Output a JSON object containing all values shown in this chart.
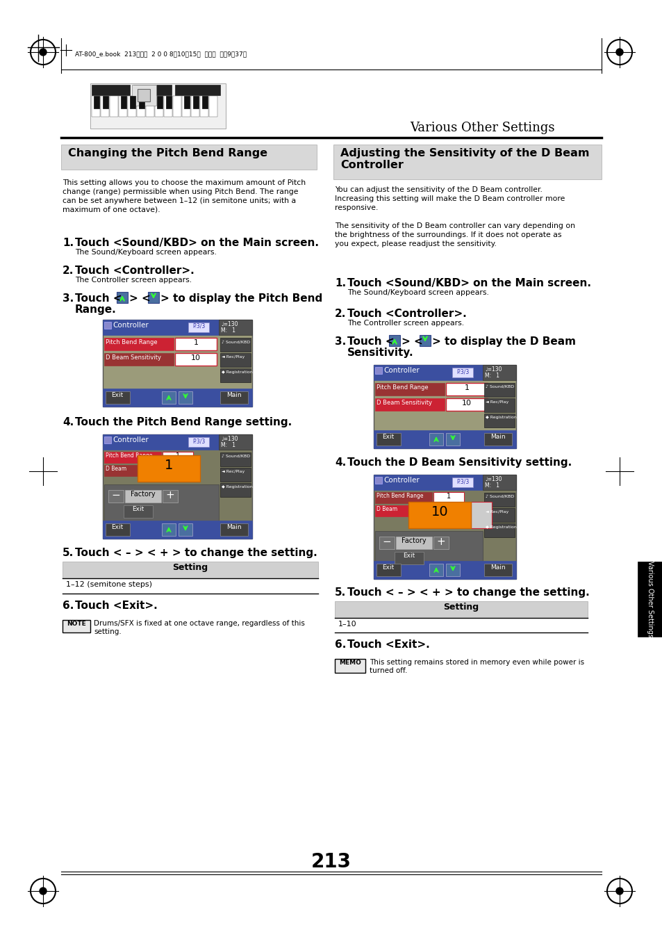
{
  "bg_color": "#ffffff",
  "header_text": "AT-800_e.book  213ページ  2 0 0 8年10月15日  水曜日  午前9時37分",
  "various_other_settings": "Various Other Settings",
  "left_title": "Changing the Pitch Bend Range",
  "right_title_1": "Adjusting the Sensitivity of the D Beam",
  "right_title_2": "Controller",
  "left_body": [
    "This setting allows you to choose the maximum amount of Pitch",
    "change (range) permissible when using Pitch Bend. The range",
    "can be set anywhere between 1–12 (in semitone units; with a",
    "maximum of one octave)."
  ],
  "right_body": [
    "You can adjust the sensitivity of the D Beam controller.",
    "Increasing this setting will make the D Beam controller more",
    "responsive.",
    "",
    "The sensitivity of the D Beam controller can vary depending on",
    "the brightness of the surroundings. If it does not operate as",
    "you expect, please readjust the sensitivity."
  ],
  "page_number": "213",
  "left_table_header": "Setting",
  "left_table_value": "1–12 (semitone steps)",
  "right_table_header": "Setting",
  "right_table_value": "1–10",
  "note_text_1": "Drums/SFX is fixed at one octave range, regardless of this",
  "note_text_2": "setting.",
  "memo_text_1": "This setting remains stored in memory even while power is",
  "memo_text_2": "turned off."
}
